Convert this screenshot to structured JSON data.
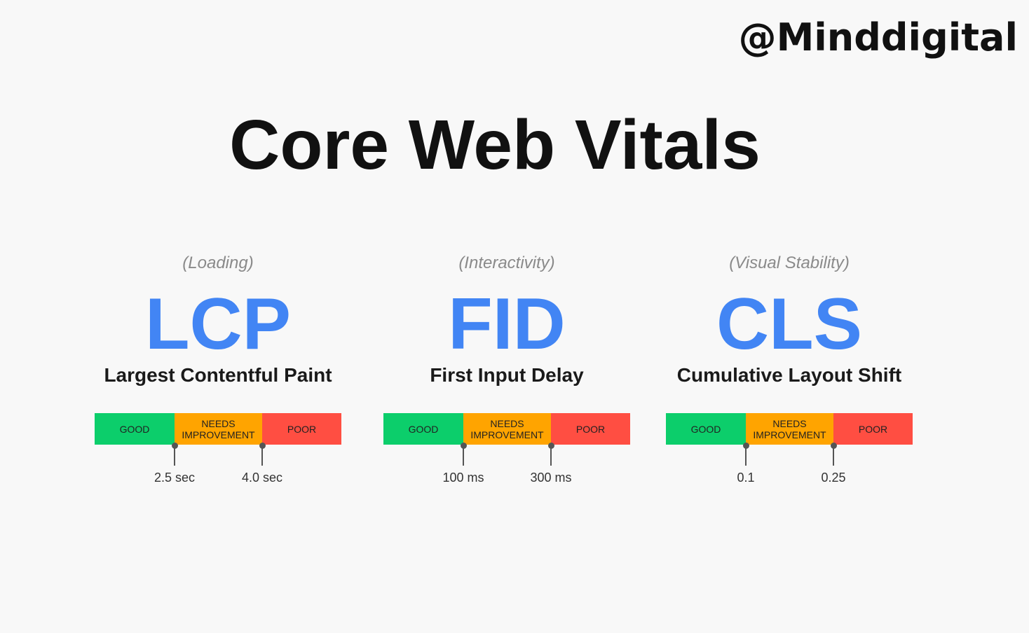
{
  "watermark": "@Minddigital",
  "title": "Core Web Vitals",
  "metrics": [
    {
      "category": "(Loading)",
      "acronym": "LCP",
      "name": "Largest Contentful Paint",
      "segments": [
        "GOOD",
        "NEEDS IMPROVEMENT",
        "POOR"
      ],
      "thresholds": [
        "2.5 sec",
        "4.0 sec"
      ]
    },
    {
      "category": "(Interactivity)",
      "acronym": "FID",
      "name": "First Input Delay",
      "segments": [
        "GOOD",
        "NEEDS IMPROVEMENT",
        "POOR"
      ],
      "thresholds": [
        "100 ms",
        "300 ms"
      ]
    },
    {
      "category": "(Visual Stability)",
      "acronym": "CLS",
      "name": "Cumulative Layout Shift",
      "segments": [
        "GOOD",
        "NEEDS IMPROVEMENT",
        "POOR"
      ],
      "thresholds": [
        "0.1",
        "0.25"
      ]
    }
  ]
}
